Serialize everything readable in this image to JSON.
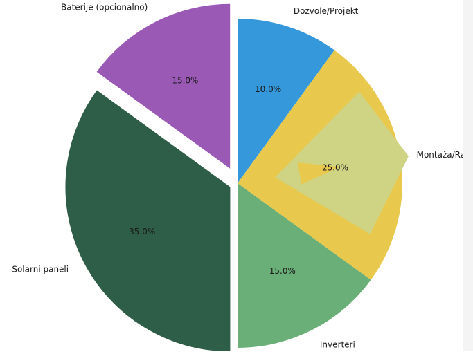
{
  "chart_data": {
    "type": "pie",
    "title": "",
    "start_angle_deg": 90,
    "direction": "clockwise",
    "slices": [
      {
        "label": "Dozvole/Projekt",
        "value": 10.0,
        "pct_label": "10.0%",
        "color": "#3498db",
        "explode": 0.0
      },
      {
        "label": "Montaža/Rad",
        "value": 25.0,
        "pct_label": "25.0%",
        "color": "#e8c94d",
        "explode": 0.0
      },
      {
        "label": "Inverteri",
        "value": 15.0,
        "pct_label": "15.0%",
        "color": "#6aae78",
        "explode": 0.0
      },
      {
        "label": "Solarni paneli",
        "value": 35.0,
        "pct_label": "35.0%",
        "color": "#2e5e47",
        "explode": 0.05
      },
      {
        "label": "Baterije (opcionalno)",
        "value": 15.0,
        "pct_label": "15.0%",
        "color": "#9b59b6",
        "explode": 0.1
      }
    ]
  }
}
